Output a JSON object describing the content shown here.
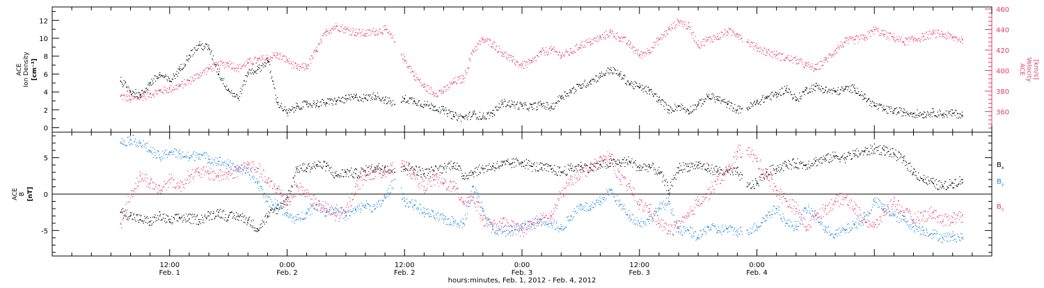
{
  "colors": {
    "axis": "#000000",
    "density": "#000000",
    "velocity": "#e8386b",
    "bx": "#000000",
    "by": "#1a85e6",
    "bz": "#e8386b"
  },
  "chart_data": [
    {
      "type": "scatter",
      "panel": "top",
      "left_label_lines": [
        "ACE",
        "Ion Density",
        "[cm⁻³]"
      ],
      "right_label_lines": [
        "ACE",
        "Velocity",
        "[km/s]"
      ],
      "y_left_lim": [
        -0.5,
        13.5
      ],
      "y_left_ticks": [
        0,
        2,
        4,
        6,
        8,
        10,
        12
      ],
      "y_right_lim": [
        340,
        462
      ],
      "y_right_ticks": [
        360,
        380,
        400,
        420,
        440,
        460
      ],
      "x_hours_lim": [
        0,
        96
      ],
      "data_gaps_hours": [
        [
          34.8,
          35.6
        ],
        [
          70.5,
          71.0
        ]
      ],
      "series": [
        {
          "name": "Ion Density",
          "axis": "left",
          "x_hours": [
            7,
            8,
            9,
            10,
            11,
            12,
            13,
            14,
            15,
            16,
            17,
            18,
            19,
            20,
            21,
            22,
            23,
            24,
            25,
            26,
            27,
            28,
            29,
            30,
            31,
            32,
            33,
            34,
            35,
            36,
            37,
            38,
            39,
            40,
            41,
            42,
            43,
            44,
            45,
            46,
            47,
            48,
            49,
            50,
            51,
            52,
            53,
            54,
            55,
            56,
            57,
            58,
            59,
            60,
            61,
            62,
            63,
            64,
            65,
            66,
            67,
            68,
            69,
            70,
            71,
            72,
            73,
            74,
            75,
            76,
            77,
            78,
            79,
            80,
            81,
            82,
            83,
            84,
            85,
            86,
            87,
            88,
            89,
            90,
            91,
            92,
            93
          ],
          "values": [
            5.2,
            4.1,
            3.6,
            5.0,
            5.9,
            5.2,
            6.5,
            8.1,
            9.2,
            8.9,
            6.0,
            4.2,
            3.3,
            6.2,
            6.5,
            7.5,
            2.8,
            1.6,
            2.4,
            2.6,
            2.7,
            2.8,
            3.0,
            3.2,
            3.4,
            3.3,
            3.6,
            3.1,
            2.6,
            3.2,
            3.0,
            2.6,
            2.3,
            1.9,
            1.3,
            1.1,
            1.5,
            1.2,
            1.6,
            2.8,
            2.6,
            2.4,
            2.3,
            2.6,
            2.2,
            3.5,
            4.1,
            4.7,
            5.2,
            5.8,
            6.5,
            5.9,
            4.9,
            4.5,
            4.1,
            3.1,
            2.0,
            2.4,
            1.9,
            2.6,
            3.5,
            3.2,
            2.6,
            2.0,
            2.2,
            2.8,
            3.4,
            3.7,
            4.4,
            3.1,
            4.2,
            4.6,
            4.2,
            4.0,
            4.3,
            4.4,
            3.3,
            2.5,
            2.0,
            1.9,
            1.7,
            1.6,
            1.5,
            1.7,
            1.5,
            1.6,
            1.4
          ]
        },
        {
          "name": "Velocity",
          "axis": "right",
          "x_hours": [
            7,
            8,
            9,
            10,
            11,
            12,
            13,
            14,
            15,
            16,
            17,
            18,
            19,
            20,
            21,
            22,
            23,
            24,
            25,
            26,
            27,
            28,
            29,
            30,
            31,
            32,
            33,
            34,
            35,
            36,
            37,
            38,
            39,
            40,
            41,
            42,
            43,
            44,
            45,
            46,
            47,
            48,
            49,
            50,
            51,
            52,
            53,
            54,
            55,
            56,
            57,
            58,
            59,
            60,
            61,
            62,
            63,
            64,
            65,
            66,
            67,
            68,
            69,
            70,
            71,
            72,
            73,
            74,
            75,
            76,
            77,
            78,
            79,
            80,
            81,
            82,
            83,
            84,
            85,
            86,
            87,
            88,
            89,
            90,
            91,
            92,
            93
          ],
          "values": [
            375,
            372,
            374,
            377,
            380,
            382,
            385,
            390,
            396,
            402,
            405,
            407,
            402,
            408,
            410,
            412,
            415,
            410,
            402,
            404,
            420,
            438,
            443,
            440,
            437,
            436,
            438,
            440,
            428,
            410,
            395,
            384,
            378,
            380,
            389,
            392,
            420,
            430,
            426,
            417,
            410,
            405,
            408,
            418,
            420,
            415,
            418,
            425,
            428,
            432,
            437,
            432,
            425,
            415,
            420,
            430,
            440,
            448,
            443,
            425,
            430,
            433,
            438,
            436,
            428,
            422,
            418,
            415,
            412,
            410,
            405,
            402,
            410,
            420,
            428,
            430,
            432,
            440,
            435,
            432,
            428,
            430,
            433,
            436,
            435,
            432,
            430
          ]
        }
      ]
    },
    {
      "type": "scatter",
      "panel": "bottom",
      "left_label_lines": [
        "ACE",
        "B",
        "[nT]"
      ],
      "y_lim": [
        -8.5,
        8.5
      ],
      "y_ticks": [
        -5,
        0,
        5
      ],
      "zero_line": true,
      "x_hours_lim": [
        0,
        96
      ],
      "series": [
        {
          "name": "Bx",
          "x_hours": [
            7,
            8,
            9,
            10,
            11,
            12,
            13,
            14,
            15,
            16,
            17,
            18,
            19,
            20,
            21,
            22,
            23,
            24,
            25,
            26,
            27,
            28,
            29,
            30,
            31,
            32,
            33,
            34,
            35,
            36,
            37,
            38,
            39,
            40,
            41,
            42,
            43,
            44,
            45,
            46,
            47,
            48,
            49,
            50,
            51,
            52,
            53,
            54,
            55,
            56,
            57,
            58,
            59,
            60,
            61,
            62,
            63,
            64,
            65,
            66,
            67,
            68,
            69,
            70,
            71,
            72,
            73,
            74,
            75,
            76,
            77,
            78,
            79,
            80,
            81,
            82,
            83,
            84,
            85,
            86,
            87,
            88,
            89,
            90,
            91,
            92,
            93
          ],
          "values": [
            -2.5,
            -3.0,
            -3.5,
            -3.8,
            -3.0,
            -3.8,
            -3.2,
            -3.4,
            -3.5,
            -3.0,
            -2.5,
            -3.2,
            -3.0,
            -3.6,
            -4.8,
            -3.0,
            -2.0,
            -0.5,
            3.5,
            3.6,
            4.0,
            3.8,
            2.5,
            3.0,
            2.8,
            3.2,
            3.6,
            3.7,
            3.0,
            3.8,
            3.4,
            2.8,
            3.2,
            3.6,
            4.2,
            2.5,
            3.0,
            3.5,
            3.8,
            4.0,
            4.2,
            4.4,
            3.8,
            3.6,
            3.4,
            3.0,
            3.5,
            3.8,
            3.6,
            4.0,
            4.2,
            4.3,
            4.5,
            3.6,
            3.8,
            3.0,
            0.5,
            3.6,
            3.8,
            4.0,
            3.5,
            3.2,
            3.0,
            3.0,
            1.0,
            1.5,
            3.0,
            3.5,
            4.0,
            4.2,
            4.0,
            4.5,
            4.8,
            5.2,
            5.0,
            5.5,
            5.8,
            6.2,
            6.0,
            5.5,
            4.6,
            3.0,
            2.0,
            1.5,
            1.0,
            1.5,
            2.0
          ]
        },
        {
          "name": "By",
          "x_hours": [
            7,
            8,
            9,
            10,
            11,
            12,
            13,
            14,
            15,
            16,
            17,
            18,
            19,
            20,
            21,
            22,
            23,
            24,
            25,
            26,
            27,
            28,
            29,
            30,
            31,
            32,
            33,
            34,
            35,
            36,
            37,
            38,
            39,
            40,
            41,
            42,
            43,
            44,
            45,
            46,
            47,
            48,
            49,
            50,
            51,
            52,
            53,
            54,
            55,
            56,
            57,
            58,
            59,
            60,
            61,
            62,
            63,
            64,
            65,
            66,
            67,
            68,
            69,
            70,
            71,
            72,
            73,
            74,
            75,
            76,
            77,
            78,
            79,
            80,
            81,
            82,
            83,
            84,
            85,
            86,
            87,
            88,
            89,
            90,
            91,
            92,
            93
          ],
          "values": [
            7.0,
            7.5,
            7.0,
            6.0,
            5.0,
            5.8,
            5.5,
            5.0,
            5.5,
            4.8,
            4.5,
            4.0,
            3.5,
            3.0,
            1.5,
            -1.0,
            -1.5,
            -3.0,
            -3.5,
            -2.5,
            -1.5,
            -2.5,
            -2.0,
            -3.0,
            -2.2,
            -1.5,
            -2.0,
            -0.5,
            2.0,
            -1.0,
            -1.5,
            -2.5,
            -3.0,
            -3.5,
            -3.8,
            -4.0,
            1.0,
            -2.0,
            -4.8,
            -5.2,
            -5.0,
            -4.5,
            -4.2,
            -3.5,
            -4.0,
            -4.8,
            -3.0,
            -1.5,
            -2.0,
            -1.0,
            0.5,
            -1.5,
            -3.0,
            -4.0,
            -3.5,
            -2.0,
            -1.0,
            -5.2,
            -5.0,
            -6.0,
            -4.5,
            -5.0,
            -4.8,
            -5.2,
            -5.0,
            -4.5,
            -3.0,
            -2.0,
            -4.0,
            -4.5,
            -2.0,
            -3.0,
            -5.0,
            -5.5,
            -5.0,
            -4.2,
            -3.5,
            -1.0,
            -2.0,
            -3.0,
            -3.5,
            -4.5,
            -5.0,
            -5.5,
            -6.0,
            -5.8,
            -6.0
          ]
        },
        {
          "name": "Bz",
          "x_hours": [
            7,
            8,
            9,
            10,
            11,
            12,
            13,
            14,
            15,
            16,
            17,
            18,
            19,
            20,
            21,
            22,
            23,
            24,
            25,
            26,
            27,
            28,
            29,
            30,
            31,
            32,
            33,
            34,
            35,
            36,
            37,
            38,
            39,
            40,
            41,
            42,
            43,
            44,
            45,
            46,
            47,
            48,
            49,
            50,
            51,
            52,
            53,
            54,
            55,
            56,
            57,
            58,
            59,
            60,
            61,
            62,
            63,
            64,
            65,
            66,
            67,
            68,
            69,
            70,
            71,
            72,
            73,
            74,
            75,
            76,
            77,
            78,
            79,
            80,
            81,
            82,
            83,
            84,
            85,
            86,
            87,
            88,
            89,
            90,
            91,
            92,
            93
          ],
          "values": [
            -4.0,
            0.0,
            2.5,
            1.5,
            0.5,
            2.0,
            1.0,
            2.5,
            3.0,
            2.8,
            2.5,
            2.7,
            3.3,
            4.0,
            3.5,
            1.5,
            0.8,
            -1.5,
            1.0,
            0.0,
            -1.5,
            -2.0,
            -3.0,
            -2.5,
            1.0,
            2.5,
            3.0,
            3.2,
            3.5,
            3.8,
            2.5,
            1.0,
            2.0,
            1.5,
            1.0,
            -1.0,
            -0.5,
            -3.5,
            -4.5,
            -4.0,
            -4.5,
            -5.0,
            -4.0,
            -3.5,
            -3.0,
            0.0,
            2.0,
            3.0,
            3.5,
            4.5,
            5.2,
            2.0,
            1.0,
            -1.5,
            -2.0,
            -4.0,
            -5.0,
            -4.5,
            -3.0,
            -1.0,
            0.0,
            2.0,
            3.0,
            5.8,
            6.0,
            4.5,
            2.5,
            0.5,
            -1.0,
            -2.0,
            -4.5,
            -3.0,
            -2.0,
            -1.0,
            -0.5,
            -2.0,
            -3.5,
            -4.5,
            -2.5,
            -1.0,
            -2.5,
            -3.5,
            -3.0,
            -2.5,
            -3.8,
            -3.2,
            -3.0
          ]
        }
      ],
      "legend": [
        {
          "name": "Bx",
          "main": "B",
          "sub": "x"
        },
        {
          "name": "By",
          "main": "B",
          "sub": "y"
        },
        {
          "name": "Bz",
          "main": "B",
          "sub": "z"
        }
      ]
    }
  ],
  "x_axis": {
    "ticks": [
      {
        "hours": 12,
        "time": "12:00",
        "date": "Feb. 1"
      },
      {
        "hours": 24,
        "time": "0:00",
        "date": "Feb. 2"
      },
      {
        "hours": 36,
        "time": "12:00",
        "date": "Feb. 2"
      },
      {
        "hours": 48,
        "time": "0:00",
        "date": "Feb. 3"
      },
      {
        "hours": 60,
        "time": "12:00",
        "date": "Feb. 3"
      },
      {
        "hours": 72,
        "time": "0:00",
        "date": "Feb. 4"
      }
    ],
    "title": "hours:minutes, Feb.  1, 2012 - Feb.  4, 2012"
  }
}
